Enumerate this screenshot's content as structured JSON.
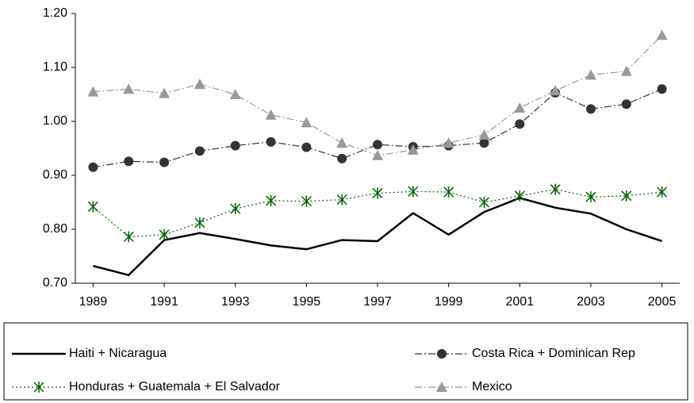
{
  "chart_data": {
    "type": "line",
    "x": [
      1989,
      1990,
      1991,
      1992,
      1993,
      1994,
      1995,
      1996,
      1997,
      1998,
      1999,
      2000,
      2001,
      2002,
      2003,
      2004,
      2005
    ],
    "xlim": [
      1988.5,
      2005.5
    ],
    "xticks": [
      1989,
      1991,
      1993,
      1995,
      1997,
      1999,
      2001,
      2003,
      2005
    ],
    "ylim": [
      0.7,
      1.2
    ],
    "yticks": [
      {
        "value": 0.7,
        "label": "0.70"
      },
      {
        "value": 0.8,
        "label": "0.80"
      },
      {
        "value": 0.9,
        "label": "0.90"
      },
      {
        "value": 1.0,
        "label": "1.00"
      },
      {
        "value": 1.1,
        "label": "1.10"
      },
      {
        "value": 1.2,
        "label": "1.20"
      }
    ],
    "grid": false,
    "legend": "bottom",
    "series": [
      {
        "name": "Haiti + Nicaragua",
        "color": "#000000",
        "dash": "solid",
        "marker": "none",
        "values": [
          0.732,
          0.715,
          0.78,
          0.793,
          0.782,
          0.77,
          0.763,
          0.78,
          0.778,
          0.83,
          0.79,
          0.832,
          0.858,
          0.84,
          0.829,
          0.8,
          0.778
        ]
      },
      {
        "name": "Costa Rica + Dominican Rep",
        "color": "#333333",
        "dash": "dashdot",
        "marker": "circle",
        "values": [
          0.915,
          0.926,
          0.924,
          0.945,
          0.955,
          0.962,
          0.952,
          0.931,
          0.957,
          0.953,
          0.955,
          0.96,
          0.995,
          1.053,
          1.023,
          1.032,
          1.06
        ]
      },
      {
        "name": "Honduras + Guatemala + El Salvador",
        "color": "#006400",
        "dash": "dotted",
        "marker": "asterisk",
        "values": [
          0.842,
          0.786,
          0.79,
          0.812,
          0.838,
          0.853,
          0.852,
          0.855,
          0.867,
          0.87,
          0.869,
          0.85,
          0.862,
          0.874,
          0.86,
          0.862,
          0.869
        ]
      },
      {
        "name": "Mexico",
        "color": "#999999",
        "dash": "dashdot",
        "marker": "triangle",
        "values": [
          1.055,
          1.06,
          1.052,
          1.069,
          1.05,
          1.012,
          0.998,
          0.96,
          0.937,
          0.947,
          0.96,
          0.975,
          1.025,
          1.057,
          1.086,
          1.093,
          1.16
        ]
      }
    ]
  }
}
